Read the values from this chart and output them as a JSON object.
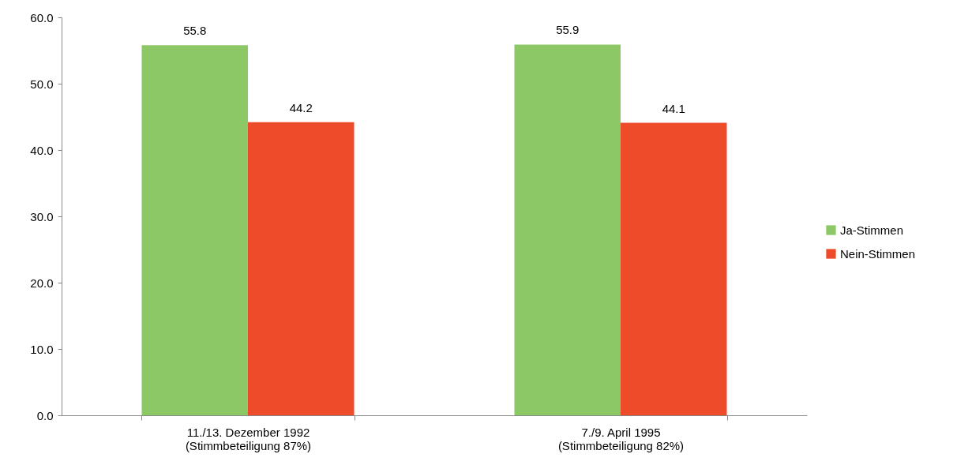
{
  "chart_data": {
    "type": "bar",
    "categories": [
      "11./13. Dezember 1992\n(Stimmbeteiligung 87%)",
      "7./9. April 1995\n(Stimmbeteiligung 82%)"
    ],
    "series": [
      {
        "name": "Ja-Stimmen",
        "color": "#8cc966",
        "values": [
          55.8,
          55.9
        ]
      },
      {
        "name": "Nein-Stimmen",
        "color": "#ee4b2b",
        "values": [
          44.2,
          44.1
        ]
      }
    ],
    "ylim": [
      0,
      60
    ],
    "yticks": [
      {
        "value": 0,
        "label": "0.0"
      },
      {
        "value": 10,
        "label": "10.0"
      },
      {
        "value": 20,
        "label": "20.0"
      },
      {
        "value": 30,
        "label": "30.0"
      },
      {
        "value": 40,
        "label": "40.0"
      },
      {
        "value": 50,
        "label": "50.0"
      },
      {
        "value": 60,
        "label": "60.0"
      }
    ],
    "data_labels": true,
    "grid": false,
    "legend": "right"
  }
}
